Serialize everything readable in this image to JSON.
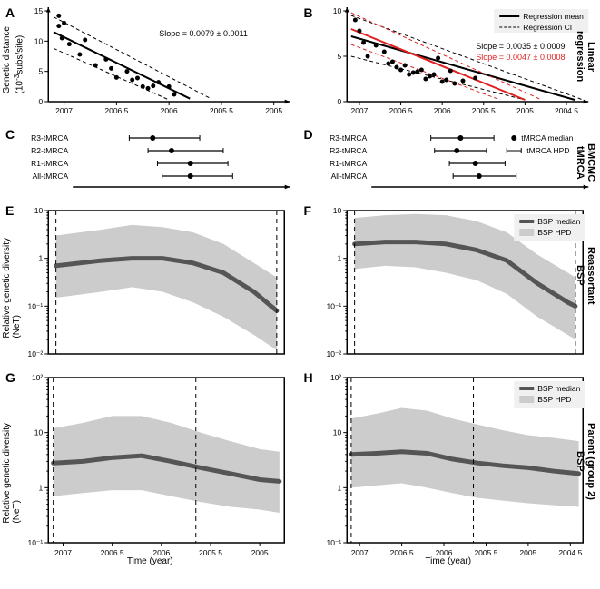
{
  "panels": {
    "A": {
      "letter": "A"
    },
    "B": {
      "letter": "B"
    },
    "C": {
      "letter": "C"
    },
    "D": {
      "letter": "D"
    },
    "E": {
      "letter": "E"
    },
    "F": {
      "letter": "F"
    },
    "G": {
      "letter": "G"
    },
    "H": {
      "letter": "H"
    }
  },
  "row_labels": {
    "regression": "Linear\nregression",
    "bmcmc": "BMCMC\ntMRCA",
    "reassortant": "Reassortant\nBSP",
    "parent": "Parent (group 2)\nBSP"
  },
  "axis_labels": {
    "genetic_distance": "Genetic distance\n(10⁻³subs/site)",
    "rgd_net": "Relative genetic diversity\n(NeT)",
    "time_year": "Time (year)"
  },
  "regression": {
    "A": {
      "slope_text": "Slope = 0.0079 ± 0.0011",
      "slope_color": "#000000",
      "x_ticks": [
        2007,
        2006.5,
        2006,
        2005.5,
        2005
      ],
      "y_ticks": [
        0,
        5,
        10,
        15
      ],
      "mean_line": [
        [
          2007.1,
          11.5
        ],
        [
          2005.8,
          0.5
        ]
      ],
      "ci_upper": [
        [
          2007.1,
          14.0
        ],
        [
          2005.6,
          0.5
        ]
      ],
      "ci_lower": [
        [
          2007.1,
          8.8
        ],
        [
          2006.0,
          0.3
        ]
      ],
      "points": [
        [
          2007.05,
          14.2
        ],
        [
          2007.05,
          12.5
        ],
        [
          2007.02,
          10.5
        ],
        [
          2007.0,
          13.0
        ],
        [
          2006.95,
          9.5
        ],
        [
          2006.85,
          7.8
        ],
        [
          2006.8,
          10.2
        ],
        [
          2006.7,
          6.0
        ],
        [
          2006.6,
          7.0
        ],
        [
          2006.55,
          5.5
        ],
        [
          2006.5,
          4.0
        ],
        [
          2006.4,
          5.0
        ],
        [
          2006.35,
          3.6
        ],
        [
          2006.3,
          3.9
        ],
        [
          2006.25,
          2.5
        ],
        [
          2006.2,
          2.2
        ],
        [
          2006.15,
          2.6
        ],
        [
          2006.1,
          3.2
        ],
        [
          2006.0,
          2.5
        ],
        [
          2005.95,
          1.2
        ]
      ]
    },
    "B": {
      "slope_text_black": "Slope = 0.0035 ± 0.0009",
      "slope_text_red": "Slope = 0.0047 ± 0.0008",
      "black_color": "#000000",
      "red_color": "#e02020",
      "x_ticks": [
        2007,
        2006.5,
        2006,
        2005.5,
        2005,
        2004.5
      ],
      "y_ticks": [
        0,
        5,
        10
      ],
      "mean_black": [
        [
          2007.1,
          7.2
        ],
        [
          2004.4,
          0.2
        ]
      ],
      "ci_black_u": [
        [
          2007.1,
          9.5
        ],
        [
          2004.3,
          0.2
        ]
      ],
      "ci_black_l": [
        [
          2007.1,
          5.0
        ],
        [
          2005.0,
          0.2
        ]
      ],
      "mean_red": [
        [
          2007.1,
          8.0
        ],
        [
          2005.0,
          0.2
        ]
      ],
      "ci_red_u": [
        [
          2007.1,
          9.8
        ],
        [
          2004.8,
          0.2
        ]
      ],
      "ci_red_l": [
        [
          2007.1,
          6.3
        ],
        [
          2005.3,
          0.2
        ]
      ],
      "points": [
        [
          2007.05,
          9.0
        ],
        [
          2007.0,
          7.8
        ],
        [
          2006.95,
          6.5
        ],
        [
          2006.9,
          5.0
        ],
        [
          2006.8,
          6.2
        ],
        [
          2006.7,
          5.5
        ],
        [
          2006.65,
          4.2
        ],
        [
          2006.6,
          4.4
        ],
        [
          2006.55,
          3.8
        ],
        [
          2006.5,
          3.5
        ],
        [
          2006.45,
          4.0
        ],
        [
          2006.4,
          3.0
        ],
        [
          2006.35,
          3.2
        ],
        [
          2006.3,
          3.3
        ],
        [
          2006.25,
          3.5
        ],
        [
          2006.2,
          2.5
        ],
        [
          2006.15,
          2.8
        ],
        [
          2006.1,
          3.0
        ],
        [
          2006.05,
          4.8
        ],
        [
          2006.0,
          2.2
        ],
        [
          2005.95,
          2.4
        ],
        [
          2005.9,
          3.4
        ],
        [
          2005.85,
          2.0
        ],
        [
          2005.75,
          2.3
        ],
        [
          2005.6,
          2.6
        ]
      ],
      "legend": {
        "mean": "Regression mean",
        "ci": "Regression CI"
      }
    }
  },
  "tmrca": {
    "labels": [
      "R3-tMRCA",
      "R2-tMRCA",
      "R1-tMRCA",
      "All-tMRCA"
    ],
    "C": {
      "data": [
        {
          "median": 2006.3,
          "lo": 2006.55,
          "hi": 2005.8
        },
        {
          "median": 2006.1,
          "lo": 2006.35,
          "hi": 2005.55
        },
        {
          "median": 2005.9,
          "lo": 2006.25,
          "hi": 2005.5
        },
        {
          "median": 2005.9,
          "lo": 2006.2,
          "hi": 2005.45
        }
      ]
    },
    "D": {
      "data": [
        {
          "median": 2005.95,
          "lo": 2006.35,
          "hi": 2005.5
        },
        {
          "median": 2006.0,
          "lo": 2006.3,
          "hi": 2005.6
        },
        {
          "median": 2005.75,
          "lo": 2006.1,
          "hi": 2005.35
        },
        {
          "median": 2005.7,
          "lo": 2006.05,
          "hi": 2005.2
        }
      ],
      "legend": {
        "median": "tMRCA median",
        "hpd": "tMRCA HPD"
      }
    }
  },
  "bsp": {
    "median_color": "#555555",
    "hpd_color": "#cccccc",
    "E": {
      "x_ticks": [
        2007,
        2006.5,
        2006
      ],
      "y_ticks_major": [
        0.01,
        0.1,
        1,
        10
      ],
      "y_tick_labels": [
        "10⁻²",
        "10⁻¹",
        "1",
        "10"
      ],
      "y_range": [
        0.01,
        10
      ],
      "dash_lines_x": [
        2007.1,
        2005.65
      ],
      "median": [
        [
          2007.1,
          0.7
        ],
        [
          2006.8,
          0.9
        ],
        [
          2006.6,
          1.0
        ],
        [
          2006.4,
          1.0
        ],
        [
          2006.2,
          0.8
        ],
        [
          2006.0,
          0.5
        ],
        [
          2005.8,
          0.2
        ],
        [
          2005.65,
          0.08
        ]
      ],
      "hpd_u": [
        [
          2007.1,
          3.0
        ],
        [
          2006.8,
          4.0
        ],
        [
          2006.6,
          5.0
        ],
        [
          2006.4,
          4.5
        ],
        [
          2006.2,
          3.5
        ],
        [
          2006.0,
          2.0
        ],
        [
          2005.8,
          0.8
        ],
        [
          2005.65,
          0.4
        ]
      ],
      "hpd_l": [
        [
          2007.1,
          0.15
        ],
        [
          2006.8,
          0.2
        ],
        [
          2006.6,
          0.25
        ],
        [
          2006.4,
          0.2
        ],
        [
          2006.2,
          0.12
        ],
        [
          2006.0,
          0.06
        ],
        [
          2005.8,
          0.025
        ],
        [
          2005.65,
          0.012
        ]
      ]
    },
    "F": {
      "x_ticks": [
        2007,
        2006.5,
        2006
      ],
      "y_ticks_major": [
        0.01,
        0.1,
        1,
        10
      ],
      "y_tick_labels": [
        "10⁻²",
        "10⁻¹",
        "1",
        "10"
      ],
      "y_range": [
        0.01,
        10
      ],
      "dash_lines_x": [
        2007.1,
        2005.65
      ],
      "median": [
        [
          2007.1,
          2.0
        ],
        [
          2006.9,
          2.2
        ],
        [
          2006.7,
          2.2
        ],
        [
          2006.5,
          2.0
        ],
        [
          2006.3,
          1.5
        ],
        [
          2006.1,
          0.9
        ],
        [
          2005.9,
          0.3
        ],
        [
          2005.7,
          0.12
        ],
        [
          2005.65,
          0.1
        ]
      ],
      "hpd_u": [
        [
          2007.1,
          7.0
        ],
        [
          2006.9,
          8.0
        ],
        [
          2006.7,
          8.5
        ],
        [
          2006.5,
          8.0
        ],
        [
          2006.3,
          6.0
        ],
        [
          2006.1,
          3.5
        ],
        [
          2005.9,
          1.2
        ],
        [
          2005.7,
          0.5
        ],
        [
          2005.65,
          0.4
        ]
      ],
      "hpd_l": [
        [
          2007.1,
          0.6
        ],
        [
          2006.9,
          0.7
        ],
        [
          2006.7,
          0.65
        ],
        [
          2006.5,
          0.5
        ],
        [
          2006.3,
          0.35
        ],
        [
          2006.1,
          0.18
        ],
        [
          2005.9,
          0.06
        ],
        [
          2005.7,
          0.025
        ],
        [
          2005.65,
          0.02
        ]
      ],
      "legend": {
        "median": "BSP median",
        "hpd": "BSP HPD"
      }
    },
    "G": {
      "x_ticks": [
        2007,
        2006.5,
        2006,
        2005.5,
        2005
      ],
      "y_ticks_major": [
        0.1,
        1,
        10,
        100
      ],
      "y_tick_labels": [
        "10⁻¹",
        "1",
        "10",
        "10²"
      ],
      "y_range": [
        0.1,
        100
      ],
      "dash_lines_x": [
        2007.1,
        2005.65
      ],
      "median": [
        [
          2007.1,
          2.8
        ],
        [
          2006.8,
          3.0
        ],
        [
          2006.5,
          3.5
        ],
        [
          2006.2,
          3.8
        ],
        [
          2005.9,
          3.0
        ],
        [
          2005.6,
          2.3
        ],
        [
          2005.3,
          1.8
        ],
        [
          2005.0,
          1.4
        ],
        [
          2004.8,
          1.3
        ]
      ],
      "hpd_u": [
        [
          2007.1,
          12
        ],
        [
          2006.8,
          15
        ],
        [
          2006.5,
          20
        ],
        [
          2006.2,
          20
        ],
        [
          2005.9,
          15
        ],
        [
          2005.6,
          10
        ],
        [
          2005.3,
          7
        ],
        [
          2005.0,
          5
        ],
        [
          2004.8,
          4.5
        ]
      ],
      "hpd_l": [
        [
          2007.1,
          0.7
        ],
        [
          2006.8,
          0.8
        ],
        [
          2006.5,
          0.9
        ],
        [
          2006.2,
          0.9
        ],
        [
          2005.9,
          0.7
        ],
        [
          2005.6,
          0.55
        ],
        [
          2005.3,
          0.45
        ],
        [
          2005.0,
          0.4
        ],
        [
          2004.8,
          0.35
        ]
      ]
    },
    "H": {
      "x_ticks": [
        2007,
        2006.5,
        2006,
        2005.5,
        2005,
        2004.5
      ],
      "y_ticks_major": [
        0.1,
        1,
        10,
        100
      ],
      "y_tick_labels": [
        "10⁻¹",
        "1",
        "10",
        "10²"
      ],
      "y_range": [
        0.1,
        100
      ],
      "dash_lines_x": [
        2007.1,
        2005.65
      ],
      "median": [
        [
          2007.1,
          4.0
        ],
        [
          2006.8,
          4.2
        ],
        [
          2006.5,
          4.5
        ],
        [
          2006.2,
          4.2
        ],
        [
          2005.9,
          3.3
        ],
        [
          2005.6,
          2.8
        ],
        [
          2005.3,
          2.5
        ],
        [
          2005.0,
          2.3
        ],
        [
          2004.7,
          2.0
        ],
        [
          2004.4,
          1.8
        ]
      ],
      "hpd_u": [
        [
          2007.1,
          18
        ],
        [
          2006.8,
          22
        ],
        [
          2006.5,
          28
        ],
        [
          2006.2,
          25
        ],
        [
          2005.9,
          18
        ],
        [
          2005.6,
          14
        ],
        [
          2005.3,
          11
        ],
        [
          2005.0,
          9
        ],
        [
          2004.7,
          8
        ],
        [
          2004.4,
          7
        ]
      ],
      "hpd_l": [
        [
          2007.1,
          1.0
        ],
        [
          2006.8,
          1.1
        ],
        [
          2006.5,
          1.2
        ],
        [
          2006.2,
          1.0
        ],
        [
          2005.9,
          0.8
        ],
        [
          2005.6,
          0.65
        ],
        [
          2005.3,
          0.58
        ],
        [
          2005.0,
          0.52
        ],
        [
          2004.7,
          0.48
        ],
        [
          2004.4,
          0.45
        ]
      ],
      "legend": {
        "median": "BSP median",
        "hpd": "BSP HPD"
      }
    }
  },
  "colors": {
    "bg": "#ffffff",
    "axis": "#000000",
    "dash": "#000000",
    "point": "#000000"
  }
}
